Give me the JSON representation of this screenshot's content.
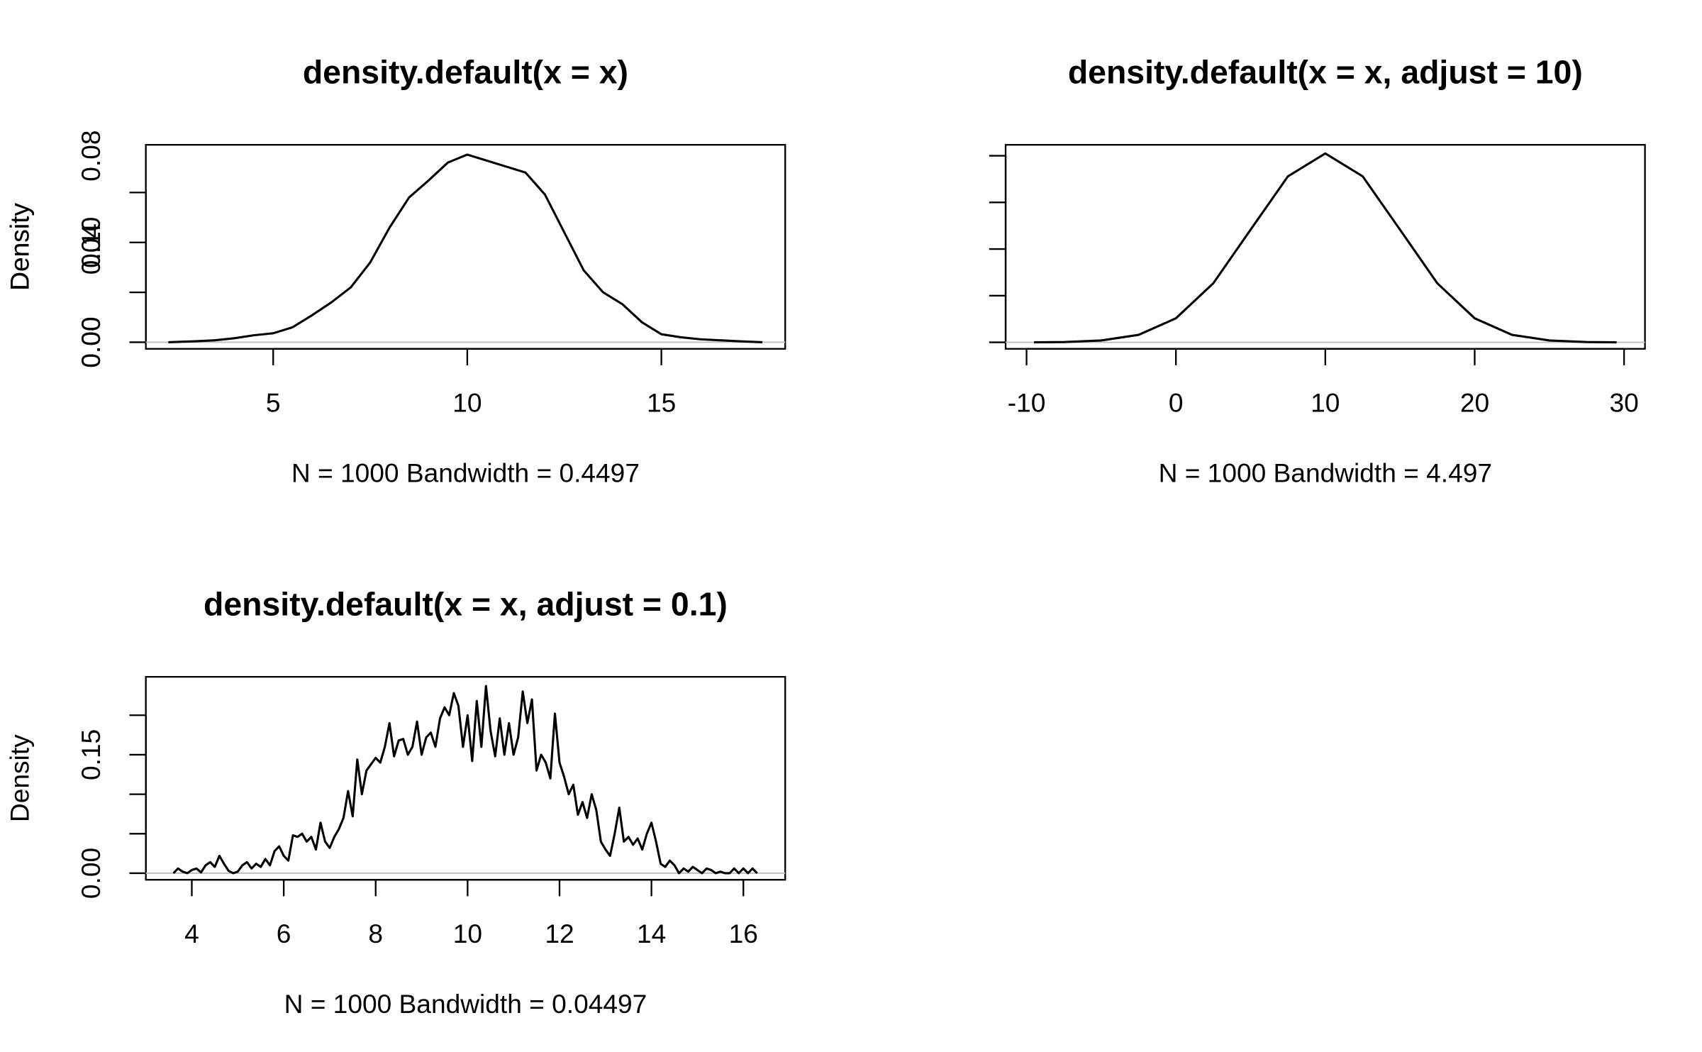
{
  "chart_data": [
    {
      "type": "line",
      "title": "density.default(x = x)",
      "xlabel": "N = 1000   Bandwidth = 0.4497",
      "ylabel": "Density",
      "x": [
        2.3,
        3,
        3.5,
        4,
        4.5,
        5,
        5.5,
        6,
        6.5,
        7,
        7.5,
        8,
        8.5,
        9,
        9.5,
        10,
        10.5,
        11,
        11.5,
        12,
        12.5,
        13,
        13.5,
        14,
        14.5,
        15,
        15.5,
        16,
        16.5,
        17,
        17.6
      ],
      "values": [
        0.0,
        0.001,
        0.002,
        0.004,
        0.007,
        0.009,
        0.015,
        0.027,
        0.04,
        0.055,
        0.08,
        0.115,
        0.145,
        0.162,
        0.18,
        0.188,
        0.182,
        0.176,
        0.17,
        0.148,
        0.11,
        0.072,
        0.05,
        0.038,
        0.02,
        0.008,
        0.005,
        0.003,
        0.002,
        0.001,
        0.0
      ],
      "color": "#000000",
      "xlim": [
        1.72,
        18.19
      ],
      "ylim": [
        -0.0066,
        0.1978
      ],
      "xticks": [
        5,
        10,
        15
      ],
      "yticks": [
        {
          "value": 0,
          "label": "0.00"
        },
        {
          "value": 0.05
        },
        {
          "value": 0.1,
          "label": "0.10"
        },
        {
          "value": 0.15
        }
      ]
    },
    {
      "type": "line",
      "title": "density.default(x = x, adjust = 10)",
      "xlabel": "N = 1000   Bandwidth = 4.497",
      "ylabel": "Density",
      "x": [
        -9.5,
        -7.5,
        -5,
        -2.5,
        0,
        2.5,
        5,
        7.5,
        10,
        12.5,
        15,
        17.5,
        20,
        22.5,
        25,
        27.5,
        29.5
      ],
      "values": [
        0.0,
        0.0001,
        0.0008,
        0.0032,
        0.0103,
        0.0253,
        0.0483,
        0.0712,
        0.081,
        0.0712,
        0.0483,
        0.0253,
        0.0103,
        0.0032,
        0.0008,
        0.0001,
        0.0
      ],
      "color": "#000000",
      "xlim": [
        -11.4,
        31.4
      ],
      "ylim": [
        -0.0028,
        0.0847
      ],
      "xticks": [
        -10,
        0,
        10,
        20,
        30
      ],
      "yticks": [
        {
          "value": 0,
          "label": "0.00"
        },
        {
          "value": 0.02
        },
        {
          "value": 0.04,
          "label": "0.04"
        },
        {
          "value": 0.06
        },
        {
          "value": 0.08,
          "label": "0.08"
        }
      ]
    },
    {
      "type": "line",
      "title": "density.default(x = x, adjust = 0.1)",
      "xlabel": "N = 1000   Bandwidth = 0.04497",
      "ylabel": "Density",
      "x": [
        3.6,
        3.7,
        3.8,
        3.9,
        4.0,
        4.1,
        4.2,
        4.3,
        4.4,
        4.5,
        4.6,
        4.7,
        4.8,
        4.9,
        5.0,
        5.1,
        5.2,
        5.3,
        5.4,
        5.5,
        5.6,
        5.7,
        5.8,
        5.9,
        6.0,
        6.1,
        6.2,
        6.3,
        6.4,
        6.5,
        6.6,
        6.7,
        6.8,
        6.9,
        7.0,
        7.1,
        7.2,
        7.3,
        7.4,
        7.5,
        7.6,
        7.7,
        7.8,
        7.9,
        8.0,
        8.1,
        8.2,
        8.3,
        8.4,
        8.5,
        8.6,
        8.7,
        8.8,
        8.9,
        9.0,
        9.1,
        9.2,
        9.3,
        9.4,
        9.5,
        9.6,
        9.7,
        9.8,
        9.9,
        10.0,
        10.1,
        10.2,
        10.3,
        10.4,
        10.5,
        10.6,
        10.7,
        10.8,
        10.9,
        11.0,
        11.1,
        11.2,
        11.3,
        11.4,
        11.5,
        11.6,
        11.7,
        11.8,
        11.9,
        12.0,
        12.1,
        12.2,
        12.3,
        12.4,
        12.5,
        12.6,
        12.7,
        12.8,
        12.9,
        13.0,
        13.1,
        13.2,
        13.3,
        13.4,
        13.5,
        13.6,
        13.7,
        13.8,
        13.9,
        14.0,
        14.1,
        14.2,
        14.3,
        14.4,
        14.5,
        14.6,
        14.7,
        14.8,
        14.9,
        15.0,
        15.1,
        15.2,
        15.3,
        15.4,
        15.5,
        15.6,
        15.7,
        15.8,
        15.9,
        16.0,
        16.1,
        16.2,
        16.3
      ],
      "values": [
        0.0,
        0.006,
        0.002,
        0.0,
        0.004,
        0.006,
        0.001,
        0.01,
        0.014,
        0.008,
        0.022,
        0.012,
        0.003,
        0.0,
        0.002,
        0.01,
        0.014,
        0.006,
        0.012,
        0.008,
        0.018,
        0.01,
        0.028,
        0.034,
        0.022,
        0.016,
        0.048,
        0.046,
        0.05,
        0.04,
        0.046,
        0.03,
        0.064,
        0.04,
        0.032,
        0.046,
        0.056,
        0.07,
        0.104,
        0.072,
        0.144,
        0.1,
        0.13,
        0.138,
        0.146,
        0.14,
        0.16,
        0.19,
        0.148,
        0.168,
        0.17,
        0.15,
        0.16,
        0.192,
        0.15,
        0.172,
        0.178,
        0.16,
        0.196,
        0.21,
        0.2,
        0.228,
        0.212,
        0.16,
        0.2,
        0.142,
        0.218,
        0.16,
        0.237,
        0.18,
        0.148,
        0.196,
        0.15,
        0.19,
        0.15,
        0.172,
        0.23,
        0.19,
        0.22,
        0.13,
        0.15,
        0.14,
        0.12,
        0.202,
        0.14,
        0.122,
        0.1,
        0.112,
        0.074,
        0.09,
        0.07,
        0.1,
        0.08,
        0.04,
        0.03,
        0.022,
        0.05,
        0.083,
        0.04,
        0.046,
        0.036,
        0.044,
        0.03,
        0.05,
        0.064,
        0.04,
        0.012,
        0.008,
        0.016,
        0.01,
        0.0,
        0.006,
        0.002,
        0.008,
        0.004,
        0.0,
        0.006,
        0.004,
        0.0,
        0.002,
        0.0,
        0.0,
        0.006,
        0.0,
        0.006,
        0.0,
        0.006,
        0.0
      ],
      "color": "#000000",
      "xlim": [
        3.0,
        16.91
      ],
      "ylim": [
        -0.0083,
        0.2486
      ],
      "xticks": [
        4,
        6,
        8,
        10,
        12,
        14,
        16
      ],
      "yticks": [
        {
          "value": 0,
          "label": "0.00"
        },
        {
          "value": 0.05
        },
        {
          "value": 0.1
        },
        {
          "value": 0.15,
          "label": "0.15"
        },
        {
          "value": 0.2
        }
      ]
    }
  ]
}
